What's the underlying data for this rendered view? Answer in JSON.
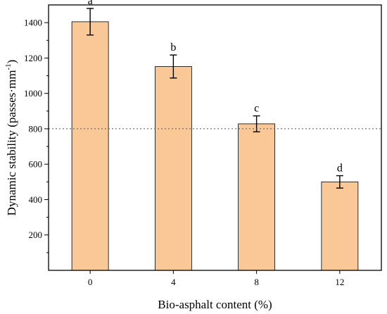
{
  "chart_data": {
    "type": "bar",
    "categories": [
      "0",
      "4",
      "8",
      "12"
    ],
    "values": [
      1405,
      1152,
      828,
      500
    ],
    "errors": [
      75,
      65,
      45,
      35
    ],
    "significance_letters": [
      "a",
      "b",
      "c",
      "d"
    ],
    "xlabel": "Bio-asphalt content (%)",
    "ylabel": "Dynamic stability (passes·mm",
    "ylabel_superscript": "-1",
    "ylabel_close": ")",
    "ylim": [
      0,
      1500
    ],
    "yticks": [
      200,
      400,
      600,
      800,
      1000,
      1200,
      1400
    ],
    "reference_line": 800,
    "grid": false,
    "colors": {
      "bar_fill": "#FAC896",
      "bar_stroke": "#000000",
      "reference_line": "#555555"
    }
  }
}
